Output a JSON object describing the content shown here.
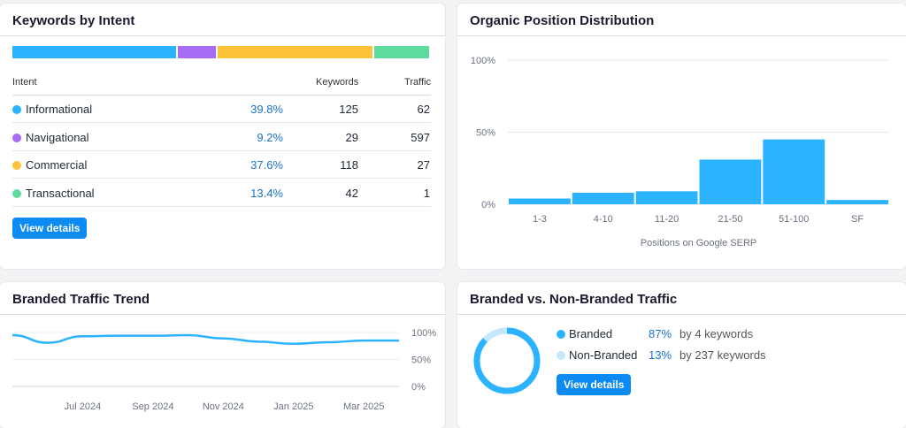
{
  "intent_card": {
    "title": "Keywords by Intent",
    "col_intent": "Intent",
    "col_keywords": "Keywords",
    "col_traffic": "Traffic",
    "rows": [
      {
        "name": "Informational",
        "pct": "39.8%",
        "keywords": "125",
        "traffic": "62",
        "color": "#2bb3ff",
        "share": 39.8
      },
      {
        "name": "Navigational",
        "pct": "9.2%",
        "keywords": "29",
        "traffic": "597",
        "color": "#a76bf6",
        "share": 9.2
      },
      {
        "name": "Commercial",
        "pct": "37.6%",
        "keywords": "118",
        "traffic": "27",
        "color": "#fbc23a",
        "share": 37.6
      },
      {
        "name": "Transactional",
        "pct": "13.4%",
        "keywords": "42",
        "traffic": "1",
        "color": "#5ddb9f",
        "share": 13.4
      }
    ],
    "button_label": "View details"
  },
  "position_card": {
    "title": "Organic Position Distribution"
  },
  "trend_card": {
    "title": "Branded Traffic Trend"
  },
  "branded_card": {
    "title": "Branded vs. Non-Branded Traffic",
    "rows": [
      {
        "name": "Branded",
        "pct": "87%",
        "detail": "by 4 keywords",
        "color": "#2bb3ff"
      },
      {
        "name": "Non-Branded",
        "pct": "13%",
        "detail": "by 237 keywords",
        "color": "#c5e6fb"
      }
    ],
    "donut_share": 0.87,
    "button_label": "View details"
  },
  "chart_data": [
    {
      "type": "bar",
      "title": "Organic Position Distribution",
      "xlabel": "Positions on Google SERP",
      "ylabel": "",
      "categories": [
        "1-3",
        "4-10",
        "11-20",
        "21-50",
        "51-100",
        "SF"
      ],
      "values": [
        4,
        8,
        9,
        31,
        45,
        3
      ],
      "ylim": [
        0,
        100
      ],
      "yticks": [
        "0%",
        "50%",
        "100%"
      ],
      "color": "#2bb3ff",
      "grid": true
    },
    {
      "type": "line",
      "title": "Branded Traffic Trend",
      "xlabel": "",
      "ylabel": "",
      "xticks": [
        "Jul 2024",
        "Sep 2024",
        "Nov 2024",
        "Jan 2025",
        "Mar 2025"
      ],
      "yticks": [
        "0%",
        "50%",
        "100%"
      ],
      "ylim": [
        0,
        100
      ],
      "x": [
        "May 2024",
        "Jun 2024",
        "Jul 2024",
        "Aug 2024",
        "Sep 2024",
        "Oct 2024",
        "Nov 2024",
        "Dec 2024",
        "Jan 2025",
        "Feb 2025",
        "Mar 2025",
        "Apr 2025"
      ],
      "values": [
        95,
        81,
        93,
        94,
        94,
        95,
        89,
        83,
        79,
        82,
        85,
        85
      ],
      "color": "#2bb3ff",
      "grid": true
    }
  ]
}
